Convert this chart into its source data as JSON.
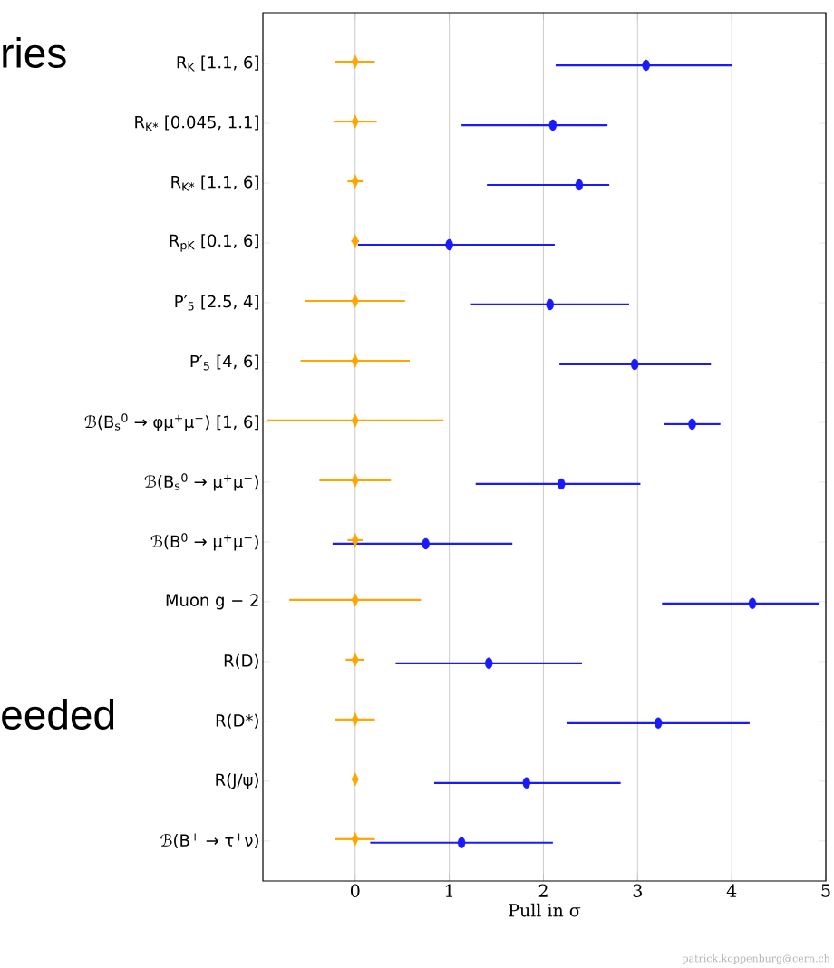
{
  "chart_data": {
    "type": "scatter",
    "orientation": "horizontal",
    "xlabel": "Pull in σ",
    "categories": [
      "R$_{K}$ [1.1, 6]",
      "R$_{K*}$ [0.045, 1.1]",
      "R$_{K*}$ [1.1, 6]",
      "R$_{pK}$ [0.1, 6]",
      "P′$_{5}$ [2.5, 4]",
      "P′$_{5}$ [4, 6]",
      "ℬ(B$_{s}$$^{0}$ → φμ$^{+}$μ$^{−}$) [1, 6]",
      "ℬ(B$_{s}$$^{0}$ → μ$^{+}$μ$^{−}$)",
      "ℬ(B$^{0}$ → μ$^{+}$μ$^{−}$)",
      "Muon g − 2",
      "R(D)",
      "R(D*)",
      "R(J/ψ)",
      "ℬ(B$^{+}$ → τ$^{+}$ν)"
    ],
    "series": [
      {
        "color": "#ffa500",
        "marker": "diamond",
        "values": [
          0,
          0,
          0,
          0,
          0,
          0,
          0,
          0,
          0,
          0,
          0,
          0,
          0,
          0
        ],
        "errors": [
          0.21,
          0.23,
          0.08,
          0.04,
          0.53,
          0.58,
          0.94,
          0.38,
          0.08,
          0.7,
          0.1,
          0.21,
          0.03,
          0.21
        ]
      },
      {
        "color": "#1a1aff",
        "marker": "circle",
        "values": [
          3.09,
          2.1,
          2.38,
          1.0,
          2.07,
          2.97,
          3.58,
          2.19,
          0.75,
          4.22,
          1.42,
          3.22,
          1.82,
          1.13
        ],
        "errors": [
          [
            2.13,
            4.0
          ],
          [
            1.13,
            2.68
          ],
          [
            1.4,
            2.7
          ],
          [
            0.03,
            2.12
          ],
          [
            1.23,
            2.91
          ],
          [
            2.17,
            3.78
          ],
          [
            3.28,
            3.88
          ],
          [
            1.28,
            3.03
          ],
          [
            -0.24,
            1.67
          ],
          [
            3.26,
            4.93
          ],
          [
            0.43,
            2.41
          ],
          [
            2.25,
            4.19
          ],
          [
            0.84,
            2.82
          ],
          [
            0.16,
            2.1
          ]
        ]
      }
    ],
    "xlim": [
      -0.98,
      5
    ],
    "xticks": [
      0,
      1,
      2,
      3,
      4,
      5
    ],
    "grid": "x",
    "annotations": [
      "ries",
      "eeded",
      "patrick.koppenburg@cern.ch"
    ]
  }
}
